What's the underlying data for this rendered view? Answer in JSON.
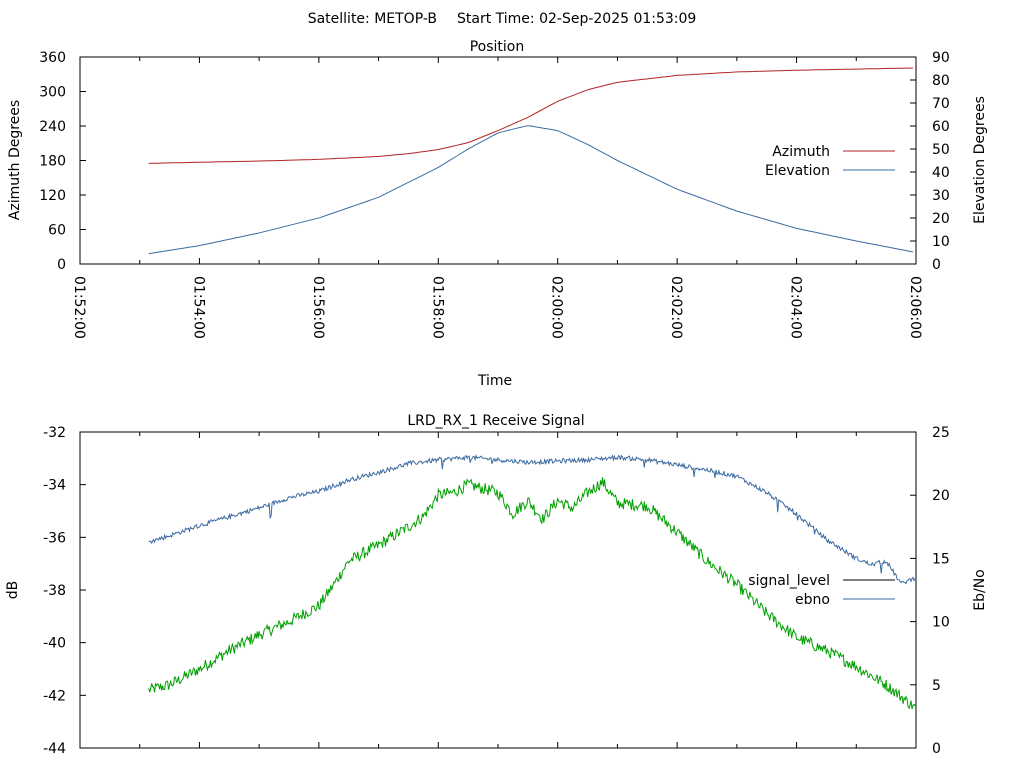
{
  "header": {
    "satellite_label": "Satellite: METOP-B",
    "start_time_label": "Start Time: 02-Sep-2025 01:53:09"
  },
  "colors": {
    "azimuth": "#b22222",
    "elevation": "#3b6aa0",
    "signal_level": "#00a000",
    "ebno": "#3b6aa0",
    "legend_signal_level_swatch": "#000000"
  },
  "chart_data": [
    {
      "type": "line",
      "title": "Position",
      "xlabel": "Time",
      "ylabel": "Azimuth Degrees",
      "y2label": "Elevation Degrees",
      "x_ticks": [
        "01:52:00",
        "01:54:00",
        "01:56:00",
        "01:58:00",
        "02:00:00",
        "02:02:00",
        "02:04:00",
        "02:06:00"
      ],
      "xlim": [
        "01:52:00",
        "02:06:00"
      ],
      "ylim": [
        0,
        360
      ],
      "y_ticks": [
        0,
        60,
        120,
        180,
        240,
        300,
        360
      ],
      "y2lim": [
        0,
        90
      ],
      "y2_ticks": [
        0,
        10,
        20,
        30,
        40,
        50,
        60,
        70,
        80,
        90
      ],
      "legend_position": "right",
      "series": [
        {
          "name": "Azimuth",
          "axis": "y",
          "x": [
            "01:53:09",
            "01:54:00",
            "01:55:00",
            "01:56:00",
            "01:57:00",
            "01:57:30",
            "01:58:00",
            "01:58:30",
            "01:59:00",
            "01:59:30",
            "02:00:00",
            "02:00:30",
            "02:01:00",
            "02:02:00",
            "02:03:00",
            "02:04:00",
            "02:05:00",
            "02:06:00"
          ],
          "values": [
            175,
            177,
            179,
            182,
            187,
            192,
            199,
            211,
            232,
            255,
            283,
            303,
            316,
            328,
            334,
            337,
            339,
            341
          ]
        },
        {
          "name": "Elevation",
          "axis": "y2",
          "x": [
            "01:53:09",
            "01:54:00",
            "01:55:00",
            "01:56:00",
            "01:57:00",
            "01:58:00",
            "01:58:30",
            "01:59:00",
            "01:59:30",
            "02:00:00",
            "02:00:30",
            "02:01:00",
            "02:02:00",
            "02:03:00",
            "02:04:00",
            "02:05:00",
            "02:06:00"
          ],
          "values": [
            4.5,
            8,
            13.5,
            20,
            29,
            42,
            50,
            57,
            60.2,
            58,
            52,
            45,
            32.5,
            23,
            15.5,
            10,
            5
          ]
        }
      ]
    },
    {
      "type": "line",
      "title": "LRD_RX_1 Receive Signal",
      "ylabel": "dB",
      "y2label": "Eb/No",
      "xlim": [
        "01:52:00",
        "02:06:00"
      ],
      "ylim": [
        -44,
        -32
      ],
      "y_ticks": [
        -44,
        -42,
        -40,
        -38,
        -36,
        -34,
        -32
      ],
      "y2lim": [
        0,
        25
      ],
      "y2_ticks": [
        0,
        5,
        10,
        15,
        20,
        25
      ],
      "legend_position": "right",
      "series": [
        {
          "name": "signal_level",
          "axis": "y",
          "x": [
            "01:53:09",
            "01:53:30",
            "01:54:00",
            "01:54:30",
            "01:55:00",
            "01:55:30",
            "01:56:00",
            "01:56:15",
            "01:56:30",
            "01:57:00",
            "01:57:30",
            "01:57:45",
            "01:58:00",
            "01:58:15",
            "01:58:30",
            "01:59:00",
            "01:59:15",
            "01:59:30",
            "01:59:45",
            "02:00:00",
            "02:00:15",
            "02:00:30",
            "02:00:45",
            "02:01:00",
            "02:01:30",
            "02:02:00",
            "02:02:30",
            "02:03:00",
            "02:03:30",
            "02:04:00",
            "02:04:30",
            "02:05:00",
            "02:05:30",
            "02:06:00"
          ],
          "values": [
            -41.8,
            -41.6,
            -41.0,
            -40.3,
            -39.7,
            -39.2,
            -38.6,
            -37.8,
            -36.9,
            -36.3,
            -35.6,
            -35.2,
            -34.4,
            -34.3,
            -34.0,
            -34.3,
            -35.1,
            -34.6,
            -35.3,
            -34.6,
            -34.9,
            -34.3,
            -33.9,
            -34.7,
            -34.8,
            -35.8,
            -36.9,
            -37.8,
            -38.9,
            -39.8,
            -40.3,
            -40.9,
            -41.6,
            -42.5
          ]
        },
        {
          "name": "ebno",
          "axis": "y2",
          "x": [
            "01:53:09",
            "01:53:30",
            "01:54:00",
            "01:54:30",
            "01:55:00",
            "01:55:30",
            "01:56:00",
            "01:56:30",
            "01:57:00",
            "01:57:30",
            "01:58:00",
            "01:58:30",
            "01:59:00",
            "01:59:30",
            "02:00:00",
            "02:00:30",
            "02:01:00",
            "02:01:30",
            "02:02:00",
            "02:02:30",
            "02:03:00",
            "02:03:30",
            "02:04:00",
            "02:04:30",
            "02:05:00",
            "02:05:15",
            "02:05:30",
            "02:05:45",
            "02:06:00"
          ],
          "values": [
            16.3,
            16.8,
            17.6,
            18.3,
            19.0,
            19.8,
            20.3,
            21.2,
            21.8,
            22.5,
            22.8,
            23.0,
            22.8,
            22.6,
            22.7,
            22.8,
            23.0,
            22.8,
            22.4,
            22.0,
            21.5,
            20.2,
            18.5,
            16.5,
            15.0,
            14.5,
            14.8,
            13.0,
            13.5
          ]
        }
      ]
    }
  ]
}
